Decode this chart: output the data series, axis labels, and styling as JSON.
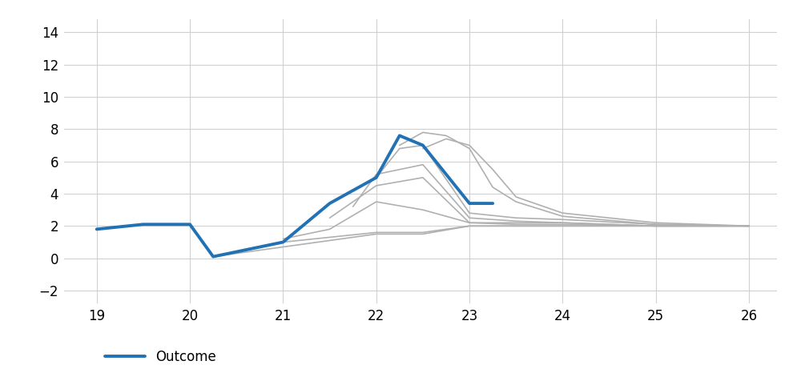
{
  "outcome_x": [
    19.0,
    19.5,
    20.0,
    20.25,
    20.75,
    21.0,
    21.5,
    22.0,
    22.25,
    22.5,
    23.0,
    23.25
  ],
  "outcome_y": [
    1.8,
    2.1,
    2.1,
    0.1,
    0.7,
    1.0,
    3.4,
    5.0,
    7.6,
    7.0,
    3.4,
    3.4
  ],
  "outcome_color": "#2171b5",
  "outcome_linewidth": 2.8,
  "forecast_color": "#b0b0b0",
  "forecast_linewidth": 1.2,
  "forecasts": [
    {
      "x": [
        20.25,
        21.0,
        22.0,
        22.5,
        23.0,
        23.5,
        24.0,
        25.0,
        26.0
      ],
      "y": [
        0.1,
        0.7,
        1.5,
        1.5,
        2.0,
        2.0,
        2.0,
        2.0,
        2.0
      ]
    },
    {
      "x": [
        20.75,
        21.0,
        22.0,
        22.5,
        23.0,
        23.5,
        24.0,
        25.0,
        26.0
      ],
      "y": [
        0.7,
        1.0,
        1.6,
        1.6,
        2.0,
        2.0,
        2.0,
        2.0,
        2.0
      ]
    },
    {
      "x": [
        21.0,
        21.5,
        22.0,
        22.5,
        23.0,
        23.5,
        24.0,
        25.0,
        26.0
      ],
      "y": [
        1.2,
        1.8,
        3.5,
        3.0,
        2.2,
        2.1,
        2.1,
        2.0,
        2.0
      ]
    },
    {
      "x": [
        21.5,
        22.0,
        22.5,
        23.0,
        23.5,
        24.0,
        25.0,
        26.0
      ],
      "y": [
        2.5,
        4.5,
        5.0,
        2.2,
        2.2,
        2.2,
        2.0,
        2.0
      ]
    },
    {
      "x": [
        21.75,
        22.0,
        22.5,
        23.0,
        23.5,
        24.0,
        25.0,
        26.0
      ],
      "y": [
        3.2,
        5.2,
        5.8,
        2.5,
        2.3,
        2.2,
        2.0,
        2.0
      ]
    },
    {
      "x": [
        22.0,
        22.25,
        22.5,
        23.0,
        23.5,
        24.0,
        25.0,
        26.0
      ],
      "y": [
        5.0,
        6.8,
        7.0,
        2.8,
        2.5,
        2.4,
        2.1,
        2.0
      ]
    },
    {
      "x": [
        22.25,
        22.5,
        22.75,
        23.0,
        23.25,
        23.5,
        24.0,
        25.0,
        26.0
      ],
      "y": [
        7.0,
        7.8,
        7.6,
        6.8,
        4.4,
        3.5,
        2.6,
        2.1,
        2.0
      ]
    },
    {
      "x": [
        22.5,
        22.75,
        23.0,
        23.25,
        23.5,
        24.0,
        25.0,
        26.0
      ],
      "y": [
        6.8,
        7.4,
        7.0,
        5.5,
        3.8,
        2.8,
        2.2,
        2.0
      ]
    }
  ],
  "xlim": [
    18.65,
    26.3
  ],
  "ylim": [
    -2.8,
    14.8
  ],
  "xticks": [
    19,
    20,
    21,
    22,
    23,
    24,
    25,
    26
  ],
  "yticks": [
    -2,
    0,
    2,
    4,
    6,
    8,
    10,
    12,
    14
  ],
  "legend_label": "Outcome",
  "background_color": "#ffffff",
  "grid_color": "#d0d0d0",
  "tick_fontsize": 12,
  "legend_fontsize": 12
}
